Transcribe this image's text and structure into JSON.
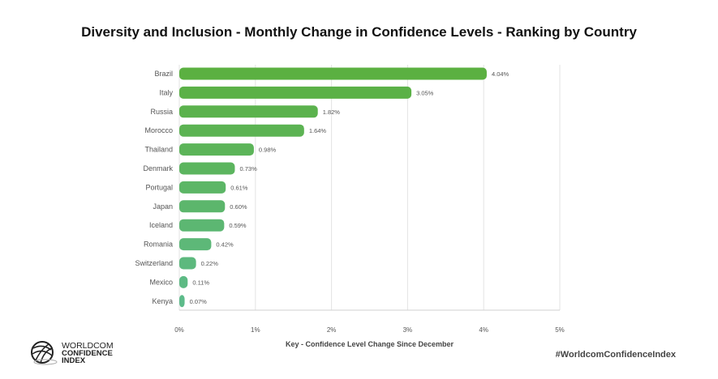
{
  "chart_data": {
    "type": "bar",
    "orientation": "horizontal",
    "title": "Diversity and Inclusion - Monthly Change in Confidence Levels - Ranking by Country",
    "xlabel": "Key - Confidence Level Change Since December",
    "ylabel": "",
    "categories": [
      "Brazil",
      "Italy",
      "Russia",
      "Morocco",
      "Thailand",
      "Denmark",
      "Portugal",
      "Japan",
      "Iceland",
      "Romania",
      "Switzerland",
      "Mexico",
      "Kenya"
    ],
    "values": [
      4.04,
      3.05,
      1.82,
      1.64,
      0.98,
      0.73,
      0.61,
      0.6,
      0.59,
      0.42,
      0.22,
      0.11,
      0.07
    ],
    "value_labels": [
      "4.04%",
      "3.05%",
      "1.82%",
      "1.64%",
      "0.98%",
      "0.73%",
      "0.61%",
      "0.60%",
      "0.59%",
      "0.42%",
      "0.22%",
      "0.11%",
      "0.07%"
    ],
    "xlim": [
      0,
      5
    ],
    "xticks": [
      0,
      1,
      2,
      3,
      4,
      5
    ],
    "xtick_labels": [
      "0%",
      "1%",
      "2%",
      "3%",
      "4%",
      "5%"
    ],
    "grid": true,
    "colors": {
      "top": "#5bb041",
      "bottom": "#5dbb8a",
      "grid": "#e3e3e3",
      "text": "#555555"
    }
  },
  "footer": {
    "hashtag": "#WorldcomConfidenceIndex",
    "logo_lines": [
      "WORLDCOM",
      "CONFIDENCE",
      "INDEX"
    ]
  }
}
